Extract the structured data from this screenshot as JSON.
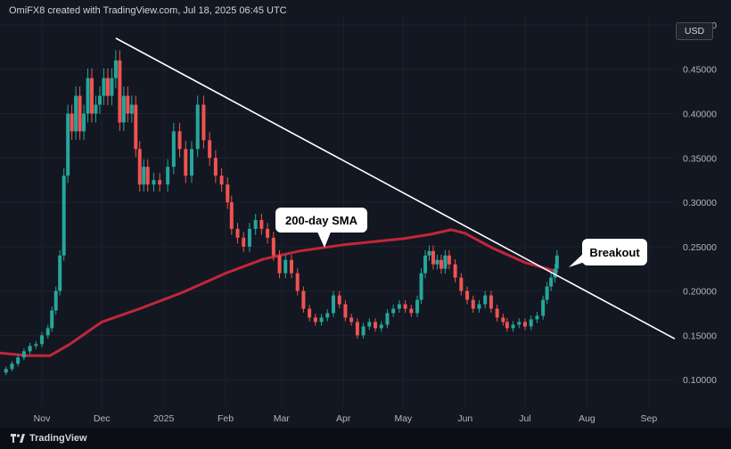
{
  "header": {
    "text": "OmiFX8 created with TradingView.com, Jul 18, 2025 06:45 UTC"
  },
  "currency": "USD",
  "footer": {
    "brand": "TradingView",
    "logo_icon": "tradingview-logo-icon"
  },
  "colors": {
    "background": "#131722",
    "up_candle": "#26a69a",
    "down_candle": "#ef5350",
    "sma": "#c2263a",
    "trendline": "#ffffff",
    "grid": "#1e222d"
  },
  "chart_data": {
    "type": "candlestick",
    "title": "",
    "xlabel": "",
    "ylabel": "",
    "x_range": [
      "2024-10-11",
      "2025-09-10"
    ],
    "ylim": [
      0.07,
      0.51
    ],
    "x_ticks": [
      {
        "date": "2024-11-01",
        "label": "Nov"
      },
      {
        "date": "2024-12-01",
        "label": "Dec"
      },
      {
        "date": "2025-01-01",
        "label": "2025"
      },
      {
        "date": "2025-02-01",
        "label": "Feb"
      },
      {
        "date": "2025-03-01",
        "label": "Mar"
      },
      {
        "date": "2025-04-01",
        "label": "Apr"
      },
      {
        "date": "2025-05-01",
        "label": "May"
      },
      {
        "date": "2025-06-01",
        "label": "Jun"
      },
      {
        "date": "2025-07-01",
        "label": "Jul"
      },
      {
        "date": "2025-08-01",
        "label": "Aug"
      },
      {
        "date": "2025-09-01",
        "label": "Sep"
      }
    ],
    "y_ticks": [
      {
        "value": 0.1,
        "label": "0.10000"
      },
      {
        "value": 0.15,
        "label": "0.15000"
      },
      {
        "value": 0.2,
        "label": "0.20000"
      },
      {
        "value": 0.25,
        "label": "0.25000"
      },
      {
        "value": 0.3,
        "label": "0.30000"
      },
      {
        "value": 0.35,
        "label": "0.35000"
      },
      {
        "value": 0.4,
        "label": "0.40000"
      },
      {
        "value": 0.45,
        "label": "0.45000"
      },
      {
        "value": 0.5,
        "label": "0.50000"
      }
    ],
    "grid": true,
    "close_series": [
      [
        "2024-10-11",
        0.108
      ],
      [
        "2024-10-14",
        0.112
      ],
      [
        "2024-10-17",
        0.118
      ],
      [
        "2024-10-20",
        0.125
      ],
      [
        "2024-10-23",
        0.132
      ],
      [
        "2024-10-26",
        0.138
      ],
      [
        "2024-10-29",
        0.14
      ],
      [
        "2024-11-01",
        0.15
      ],
      [
        "2024-11-04",
        0.158
      ],
      [
        "2024-11-06",
        0.178
      ],
      [
        "2024-11-08",
        0.2
      ],
      [
        "2024-11-10",
        0.24
      ],
      [
        "2024-11-12",
        0.33
      ],
      [
        "2024-11-14",
        0.4
      ],
      [
        "2024-11-16",
        0.38
      ],
      [
        "2024-11-18",
        0.42
      ],
      [
        "2024-11-20",
        0.38
      ],
      [
        "2024-11-22",
        0.4
      ],
      [
        "2024-11-24",
        0.44
      ],
      [
        "2024-11-26",
        0.4
      ],
      [
        "2024-11-28",
        0.41
      ],
      [
        "2024-11-30",
        0.42
      ],
      [
        "2024-12-02",
        0.44
      ],
      [
        "2024-12-04",
        0.42
      ],
      [
        "2024-12-06",
        0.44
      ],
      [
        "2024-12-08",
        0.46
      ],
      [
        "2024-12-10",
        0.39
      ],
      [
        "2024-12-12",
        0.42
      ],
      [
        "2024-12-14",
        0.4
      ],
      [
        "2024-12-16",
        0.41
      ],
      [
        "2024-12-18",
        0.36
      ],
      [
        "2024-12-20",
        0.32
      ],
      [
        "2024-12-22",
        0.34
      ],
      [
        "2024-12-24",
        0.32
      ],
      [
        "2024-12-27",
        0.325
      ],
      [
        "2024-12-30",
        0.32
      ],
      [
        "2025-01-03",
        0.34
      ],
      [
        "2025-01-06",
        0.38
      ],
      [
        "2025-01-09",
        0.36
      ],
      [
        "2025-01-12",
        0.33
      ],
      [
        "2025-01-15",
        0.36
      ],
      [
        "2025-01-18",
        0.41
      ],
      [
        "2025-01-21",
        0.37
      ],
      [
        "2025-01-24",
        0.35
      ],
      [
        "2025-01-27",
        0.33
      ],
      [
        "2025-01-30",
        0.32
      ],
      [
        "2025-02-02",
        0.3
      ],
      [
        "2025-02-04",
        0.27
      ],
      [
        "2025-02-07",
        0.26
      ],
      [
        "2025-02-10",
        0.25
      ],
      [
        "2025-02-13",
        0.27
      ],
      [
        "2025-02-16",
        0.28
      ],
      [
        "2025-02-19",
        0.27
      ],
      [
        "2025-02-22",
        0.26
      ],
      [
        "2025-02-25",
        0.24
      ],
      [
        "2025-02-28",
        0.22
      ],
      [
        "2025-03-03",
        0.235
      ],
      [
        "2025-03-06",
        0.22
      ],
      [
        "2025-03-09",
        0.2
      ],
      [
        "2025-03-12",
        0.18
      ],
      [
        "2025-03-15",
        0.17
      ],
      [
        "2025-03-18",
        0.165
      ],
      [
        "2025-03-21",
        0.17
      ],
      [
        "2025-03-24",
        0.175
      ],
      [
        "2025-03-27",
        0.195
      ],
      [
        "2025-03-30",
        0.185
      ],
      [
        "2025-04-02",
        0.17
      ],
      [
        "2025-04-05",
        0.165
      ],
      [
        "2025-04-08",
        0.15
      ],
      [
        "2025-04-11",
        0.16
      ],
      [
        "2025-04-14",
        0.165
      ],
      [
        "2025-04-17",
        0.158
      ],
      [
        "2025-04-20",
        0.162
      ],
      [
        "2025-04-23",
        0.175
      ],
      [
        "2025-04-26",
        0.18
      ],
      [
        "2025-04-29",
        0.185
      ],
      [
        "2025-05-02",
        0.18
      ],
      [
        "2025-05-05",
        0.175
      ],
      [
        "2025-05-08",
        0.19
      ],
      [
        "2025-05-10",
        0.22
      ],
      [
        "2025-05-12",
        0.24
      ],
      [
        "2025-05-14",
        0.245
      ],
      [
        "2025-05-16",
        0.23
      ],
      [
        "2025-05-18",
        0.235
      ],
      [
        "2025-05-20",
        0.225
      ],
      [
        "2025-05-22",
        0.24
      ],
      [
        "2025-05-24",
        0.23
      ],
      [
        "2025-05-27",
        0.215
      ],
      [
        "2025-05-30",
        0.2
      ],
      [
        "2025-06-02",
        0.19
      ],
      [
        "2025-06-05",
        0.18
      ],
      [
        "2025-06-08",
        0.185
      ],
      [
        "2025-06-11",
        0.195
      ],
      [
        "2025-06-14",
        0.18
      ],
      [
        "2025-06-17",
        0.17
      ],
      [
        "2025-06-20",
        0.165
      ],
      [
        "2025-06-22",
        0.158
      ],
      [
        "2025-06-25",
        0.162
      ],
      [
        "2025-06-28",
        0.165
      ],
      [
        "2025-07-01",
        0.16
      ],
      [
        "2025-07-04",
        0.168
      ],
      [
        "2025-07-07",
        0.172
      ],
      [
        "2025-07-10",
        0.19
      ],
      [
        "2025-07-12",
        0.205
      ],
      [
        "2025-07-14",
        0.215
      ],
      [
        "2025-07-16",
        0.225
      ],
      [
        "2025-07-17",
        0.24
      ]
    ],
    "sma_200": {
      "name": "200-day SMA",
      "points": [
        [
          "2024-10-11",
          0.13
        ],
        [
          "2024-10-25",
          0.127
        ],
        [
          "2024-11-05",
          0.127
        ],
        [
          "2024-11-15",
          0.14
        ],
        [
          "2024-12-01",
          0.165
        ],
        [
          "2024-12-20",
          0.18
        ],
        [
          "2025-01-10",
          0.198
        ],
        [
          "2025-02-01",
          0.22
        ],
        [
          "2025-02-20",
          0.236
        ],
        [
          "2025-03-10",
          0.245
        ],
        [
          "2025-04-01",
          0.252
        ],
        [
          "2025-05-01",
          0.259
        ],
        [
          "2025-05-15",
          0.264
        ],
        [
          "2025-05-25",
          0.269
        ],
        [
          "2025-06-01",
          0.265
        ],
        [
          "2025-06-15",
          0.248
        ],
        [
          "2025-07-01",
          0.232
        ],
        [
          "2025-07-17",
          0.222
        ]
      ]
    },
    "trendline": {
      "points": [
        [
          "2024-12-08",
          0.485
        ],
        [
          "2025-09-14",
          0.146
        ]
      ]
    },
    "annotations": [
      {
        "text": "200-day SMA",
        "date": "2025-03-25",
        "value": 0.292
      },
      {
        "text": "Breakout",
        "date": "2025-08-11",
        "value": 0.253
      }
    ]
  }
}
